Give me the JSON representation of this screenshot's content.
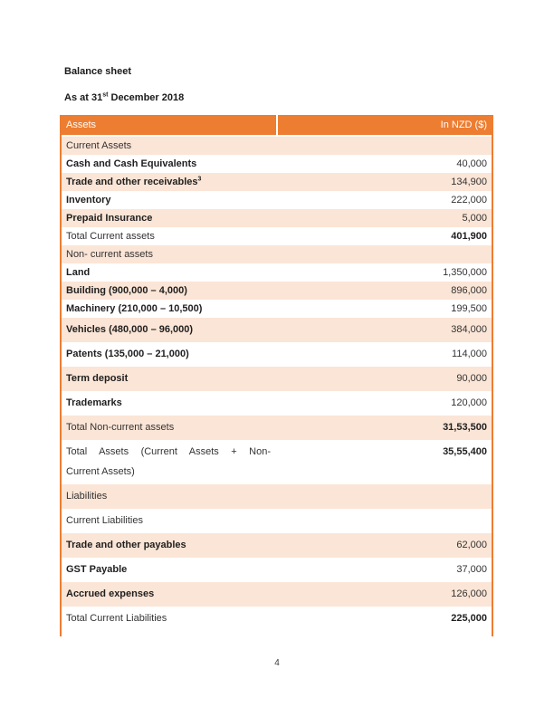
{
  "document": {
    "title": "Balance sheet",
    "subtitle": {
      "prefix": "As at 31",
      "sup": "st",
      "suffix": " December 2018"
    }
  },
  "table": {
    "colors": {
      "accent": "#ED7D31",
      "band": "#FBE5D6",
      "header_text": "#FFFFFF"
    },
    "header": {
      "col1": "Assets",
      "col2": "In NZD ($)"
    },
    "rows": [
      {
        "kind": "section",
        "label": "Current Assets",
        "value": ""
      },
      {
        "kind": "item",
        "label": "Cash and Cash Equivalents",
        "value": "40,000"
      },
      {
        "kind": "item",
        "label": "Trade and other receivables",
        "sup": "3",
        "value": "134,900"
      },
      {
        "kind": "item",
        "label": "Inventory",
        "value": "222,000"
      },
      {
        "kind": "item",
        "label": "Prepaid Insurance",
        "value": "5,000"
      },
      {
        "kind": "total",
        "label": "Total Current assets",
        "value": "401,900"
      },
      {
        "kind": "section",
        "label": "Non- current assets",
        "value": ""
      },
      {
        "kind": "item",
        "label": "Land",
        "value": "1,350,000"
      },
      {
        "kind": "item",
        "label": "Building (900,000 – 4,000)",
        "value": "896,000"
      },
      {
        "kind": "item",
        "label": "Machinery (210,000 – 10,500)",
        "value": "199,500"
      },
      {
        "kind": "item",
        "label": "Vehicles (480,000 – 96,000)",
        "value": "384,000"
      },
      {
        "kind": "item",
        "label": "Patents (135,000 – 21,000)",
        "value": "114,000"
      },
      {
        "kind": "item",
        "label": "Term deposit",
        "value": "90,000"
      },
      {
        "kind": "item",
        "label": "Trademarks",
        "value": "120,000"
      },
      {
        "kind": "total",
        "label": "Total Non-current assets",
        "value": "31,53,500"
      },
      {
        "kind": "total",
        "label_lines": [
          "Total Assets (Current Assets + Non-",
          "Current Assets)"
        ],
        "value": "35,55,400"
      },
      {
        "kind": "section",
        "label": "Liabilities",
        "value": ""
      },
      {
        "kind": "section",
        "label": "Current Liabilities",
        "value": ""
      },
      {
        "kind": "item",
        "label": "Trade and other payables",
        "value": "62,000"
      },
      {
        "kind": "item",
        "label": "GST Payable",
        "value": "37,000"
      },
      {
        "kind": "item",
        "label": "Accrued expenses",
        "value": "126,000"
      },
      {
        "kind": "total",
        "label": "Total Current Liabilities",
        "value": "225,000"
      }
    ]
  },
  "footer": {
    "page_number": "4"
  }
}
